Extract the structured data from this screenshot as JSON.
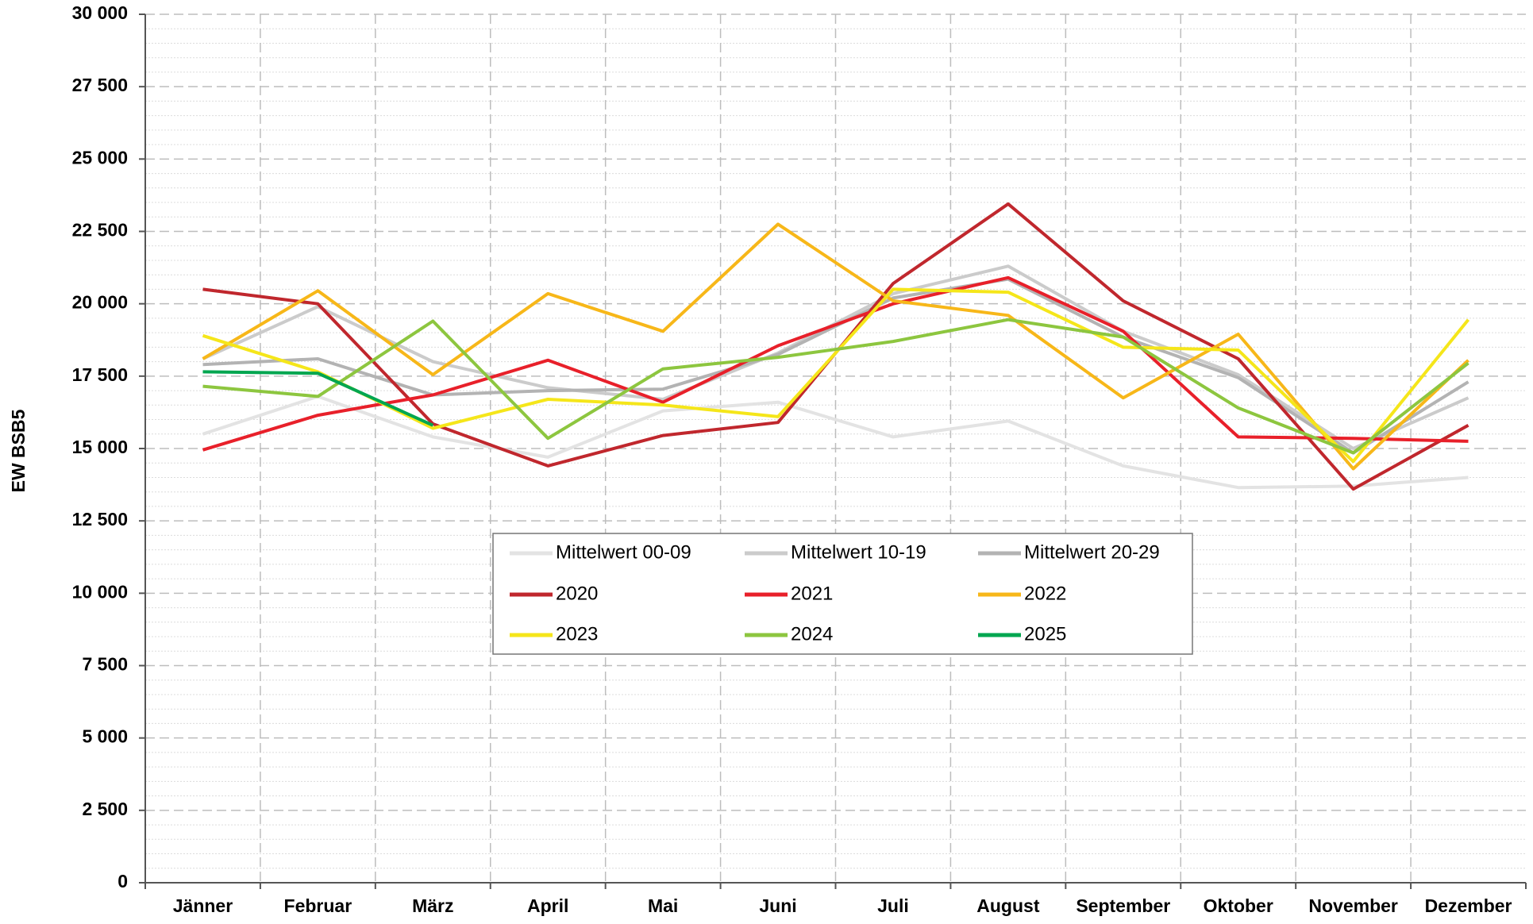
{
  "chart_data": {
    "type": "line",
    "y_label": "EW BSB5",
    "categories": [
      "Jänner",
      "Februar",
      "März",
      "April",
      "Mai",
      "Juni",
      "Juli",
      "August",
      "September",
      "Oktober",
      "November",
      "Dezember"
    ],
    "ylim": [
      0,
      30000
    ],
    "yticks": [
      0,
      {
        "value": 2500,
        "label": "2 500"
      },
      {
        "value": 5000,
        "label": "5 000"
      },
      {
        "value": 7500,
        "label": "7 500"
      },
      {
        "value": 10000,
        "label": "10 000"
      },
      {
        "value": 12500,
        "label": "12 500"
      },
      {
        "value": 15000,
        "label": "15 000"
      },
      {
        "value": 17500,
        "label": "17 500"
      },
      {
        "value": 20000,
        "label": "20 000"
      },
      {
        "value": 22500,
        "label": "22 500"
      },
      {
        "value": 25000,
        "label": "25 000"
      },
      {
        "value": 27500,
        "label": "27 500"
      },
      {
        "value": 30000,
        "label": "30 000"
      }
    ],
    "grid": true,
    "minor_grid": true,
    "series": [
      {
        "name": "Mittelwert 00-09",
        "color": "#e3e3e3",
        "values": [
          15500,
          16800,
          15400,
          14700,
          16300,
          16600,
          15400,
          15950,
          14400,
          13650,
          13700,
          14000
        ]
      },
      {
        "name": "Mittelwert 10-19",
        "color": "#cbcbcb",
        "values": [
          18100,
          19900,
          18000,
          17100,
          16700,
          18300,
          20350,
          21300,
          19050,
          17550,
          15000,
          16750
        ]
      },
      {
        "name": "Mittelwert 20-29",
        "color": "#b3b3b3",
        "values": [
          17900,
          18100,
          16850,
          17000,
          17050,
          18250,
          20200,
          20850,
          18850,
          17450,
          14850,
          17300
        ]
      },
      {
        "name": "2020",
        "color": "#c0272d",
        "values": [
          20500,
          20000,
          15850,
          14400,
          15450,
          15900,
          20700,
          23450,
          20100,
          18100,
          13600,
          15800
        ]
      },
      {
        "name": "2021",
        "color": "#e8202a",
        "values": [
          14950,
          16150,
          16850,
          18050,
          16600,
          18550,
          20000,
          20900,
          19050,
          15400,
          15350,
          15250
        ]
      },
      {
        "name": "2022",
        "color": "#f7b719",
        "values": [
          18100,
          20450,
          17550,
          20350,
          19050,
          22750,
          20100,
          19600,
          16750,
          18950,
          14300,
          18050
        ]
      },
      {
        "name": "2023",
        "color": "#f5e61a",
        "values": [
          18900,
          17650,
          15700,
          16700,
          16500,
          16100,
          20500,
          20400,
          18500,
          18400,
          14550,
          19450
        ]
      },
      {
        "name": "2024",
        "color": "#8dc63f",
        "values": [
          17150,
          16800,
          19400,
          15350,
          17750,
          18150,
          18700,
          19450,
          18850,
          16400,
          14850,
          17950
        ]
      },
      {
        "name": "2025",
        "color": "#00a650",
        "values": [
          17650,
          17600,
          15800,
          null,
          null,
          null,
          null,
          null,
          null,
          null,
          null,
          null
        ]
      }
    ]
  }
}
